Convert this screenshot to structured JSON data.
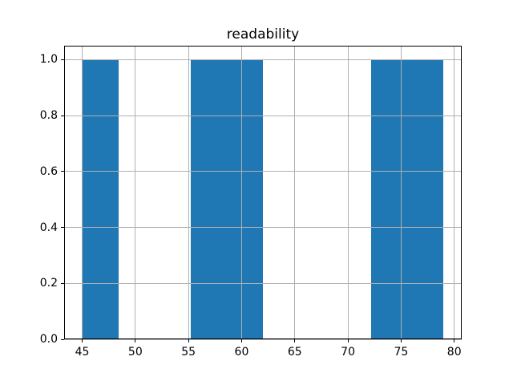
{
  "chart_data": {
    "type": "bar",
    "subtype": "histogram",
    "title": "readability",
    "xlabel": "",
    "ylabel": "",
    "bin_edges": [
      45.0,
      48.4,
      51.8,
      55.2,
      58.6,
      62.0,
      65.4,
      68.8,
      72.2,
      75.6,
      79.0
    ],
    "counts": [
      1,
      0,
      0,
      1,
      1,
      0,
      0,
      0,
      1,
      1
    ],
    "xlim": [
      43.3,
      80.7
    ],
    "ylim": [
      0,
      1.05
    ],
    "xticks": {
      "values": [
        45,
        50,
        55,
        60,
        65,
        70,
        75,
        80
      ],
      "labels": [
        "45",
        "50",
        "55",
        "60",
        "65",
        "70",
        "75",
        "80"
      ]
    },
    "yticks": {
      "values": [
        0.0,
        0.2,
        0.4,
        0.6,
        0.8,
        1.0
      ],
      "labels": [
        "0.0",
        "0.2",
        "0.4",
        "0.6",
        "0.8",
        "1.0"
      ]
    },
    "grid": true,
    "grid_on_top_of_bars": true,
    "legend": null,
    "colors": {
      "bar": "#1f77b4",
      "grid": "#b0b0b0",
      "spine": "#000000",
      "text": "#000000",
      "background": "#ffffff"
    }
  }
}
